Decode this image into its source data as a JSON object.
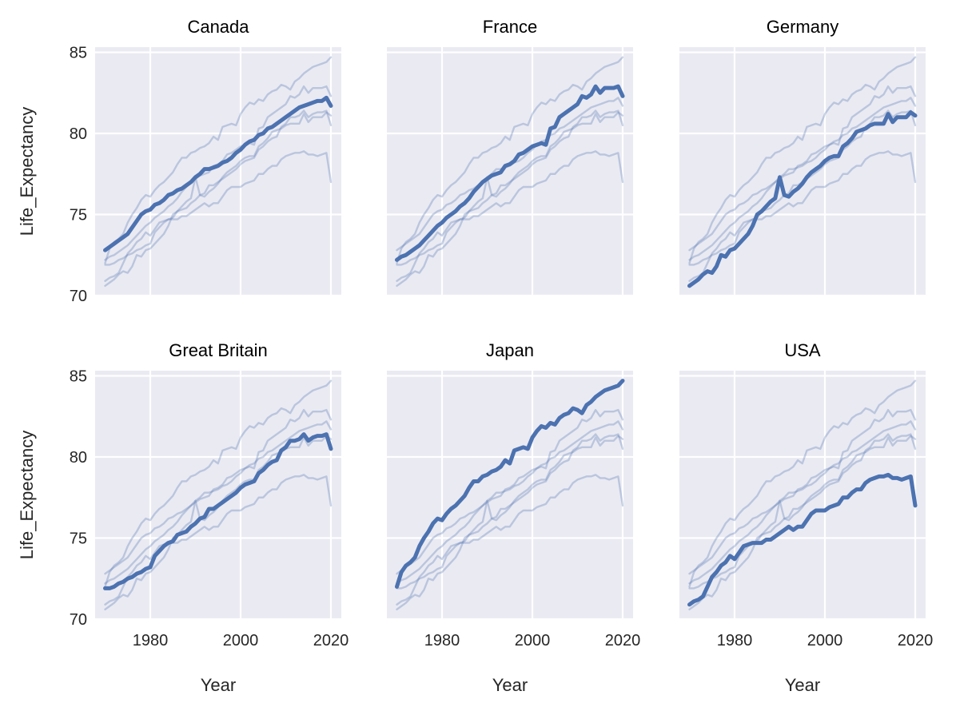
{
  "chart_data": {
    "type": "line",
    "layout": "facet-grid 2x3",
    "xlabel": "Year",
    "ylabel": "Life_Expectancy",
    "xlim": [
      1968,
      2022
    ],
    "ylim": [
      70,
      85.3
    ],
    "xticks": [
      1980,
      2000,
      2020
    ],
    "yticks": [
      70,
      75,
      80,
      85
    ],
    "xtick_labels": [
      "1980",
      "2000",
      "2020"
    ],
    "ytick_labels": [
      "70",
      "75",
      "80",
      "85"
    ],
    "grid": true,
    "background": "#eaeaf2",
    "line_color": "#4c72b0",
    "facet_order": [
      "Canada",
      "France",
      "Germany",
      "Great Britain",
      "Japan",
      "USA"
    ],
    "x": [
      1970,
      1971,
      1972,
      1973,
      1974,
      1975,
      1976,
      1977,
      1978,
      1979,
      1980,
      1981,
      1982,
      1983,
      1984,
      1985,
      1986,
      1987,
      1988,
      1989,
      1990,
      1991,
      1992,
      1993,
      1994,
      1995,
      1996,
      1997,
      1998,
      1999,
      2000,
      2001,
      2002,
      2003,
      2004,
      2005,
      2006,
      2007,
      2008,
      2009,
      2010,
      2011,
      2012,
      2013,
      2014,
      2015,
      2016,
      2017,
      2018,
      2019,
      2020
    ],
    "series": [
      {
        "name": "Canada",
        "values": [
          72.8,
          73.0,
          73.2,
          73.4,
          73.6,
          73.8,
          74.2,
          74.6,
          75.0,
          75.2,
          75.3,
          75.6,
          75.7,
          75.9,
          76.2,
          76.3,
          76.5,
          76.6,
          76.8,
          77.0,
          77.3,
          77.5,
          77.8,
          77.8,
          77.9,
          78.0,
          78.2,
          78.3,
          78.5,
          78.8,
          79.0,
          79.3,
          79.5,
          79.6,
          79.9,
          80.0,
          80.3,
          80.4,
          80.6,
          80.8,
          81.0,
          81.2,
          81.4,
          81.6,
          81.7,
          81.8,
          81.9,
          82.0,
          82.0,
          82.2,
          81.7
        ]
      },
      {
        "name": "France",
        "values": [
          72.2,
          72.4,
          72.5,
          72.7,
          72.9,
          73.1,
          73.4,
          73.7,
          74.0,
          74.3,
          74.5,
          74.8,
          75.0,
          75.2,
          75.5,
          75.7,
          76.0,
          76.4,
          76.7,
          77.0,
          77.2,
          77.4,
          77.5,
          77.6,
          78.0,
          78.1,
          78.3,
          78.7,
          78.8,
          79.0,
          79.2,
          79.3,
          79.4,
          79.3,
          80.3,
          80.4,
          81.0,
          81.2,
          81.4,
          81.6,
          81.8,
          82.3,
          82.2,
          82.4,
          82.9,
          82.5,
          82.8,
          82.8,
          82.8,
          82.9,
          82.3
        ]
      },
      {
        "name": "Germany",
        "values": [
          70.6,
          70.8,
          71.0,
          71.3,
          71.5,
          71.4,
          71.8,
          72.5,
          72.4,
          72.8,
          72.9,
          73.2,
          73.5,
          73.8,
          74.3,
          75.0,
          75.2,
          75.5,
          75.8,
          76.0,
          77.3,
          76.2,
          76.1,
          76.4,
          76.6,
          76.9,
          77.3,
          77.6,
          77.8,
          78.0,
          78.3,
          78.5,
          78.6,
          78.6,
          79.2,
          79.4,
          79.7,
          80.1,
          80.2,
          80.3,
          80.5,
          80.6,
          80.6,
          80.6,
          81.2,
          80.7,
          81.0,
          81.0,
          81.0,
          81.3,
          81.1
        ]
      },
      {
        "name": "Great Britain",
        "values": [
          71.9,
          71.9,
          72.0,
          72.2,
          72.3,
          72.5,
          72.6,
          72.8,
          72.9,
          73.1,
          73.2,
          73.9,
          74.2,
          74.5,
          74.7,
          74.8,
          75.2,
          75.3,
          75.4,
          75.7,
          75.9,
          76.2,
          76.3,
          76.8,
          76.8,
          77.0,
          77.2,
          77.4,
          77.6,
          77.8,
          78.1,
          78.3,
          78.4,
          78.5,
          79.0,
          79.2,
          79.5,
          79.7,
          79.8,
          80.4,
          80.6,
          81.0,
          81.0,
          81.1,
          81.4,
          81.0,
          81.2,
          81.3,
          81.3,
          81.4,
          80.5
        ]
      },
      {
        "name": "Japan",
        "values": [
          72.0,
          72.9,
          73.3,
          73.5,
          73.8,
          74.5,
          75.0,
          75.4,
          75.9,
          76.2,
          76.1,
          76.5,
          76.8,
          77.0,
          77.3,
          77.6,
          78.1,
          78.5,
          78.5,
          78.8,
          78.9,
          79.1,
          79.2,
          79.4,
          79.8,
          79.6,
          80.4,
          80.5,
          80.6,
          80.5,
          81.2,
          81.6,
          81.9,
          81.8,
          82.1,
          82.0,
          82.4,
          82.6,
          82.7,
          83.0,
          82.9,
          82.7,
          83.2,
          83.4,
          83.7,
          83.9,
          84.1,
          84.2,
          84.3,
          84.4,
          84.7
        ]
      },
      {
        "name": "USA",
        "values": [
          70.9,
          71.1,
          71.2,
          71.4,
          72.0,
          72.6,
          72.9,
          73.3,
          73.5,
          73.9,
          73.7,
          74.1,
          74.5,
          74.6,
          74.7,
          74.7,
          74.7,
          74.9,
          74.9,
          75.1,
          75.3,
          75.5,
          75.7,
          75.5,
          75.7,
          75.7,
          76.1,
          76.5,
          76.7,
          76.7,
          76.7,
          76.9,
          77.0,
          77.1,
          77.5,
          77.5,
          77.8,
          78.0,
          78.0,
          78.4,
          78.6,
          78.7,
          78.8,
          78.8,
          78.9,
          78.7,
          78.7,
          78.6,
          78.7,
          78.8,
          77.0
        ]
      }
    ]
  }
}
